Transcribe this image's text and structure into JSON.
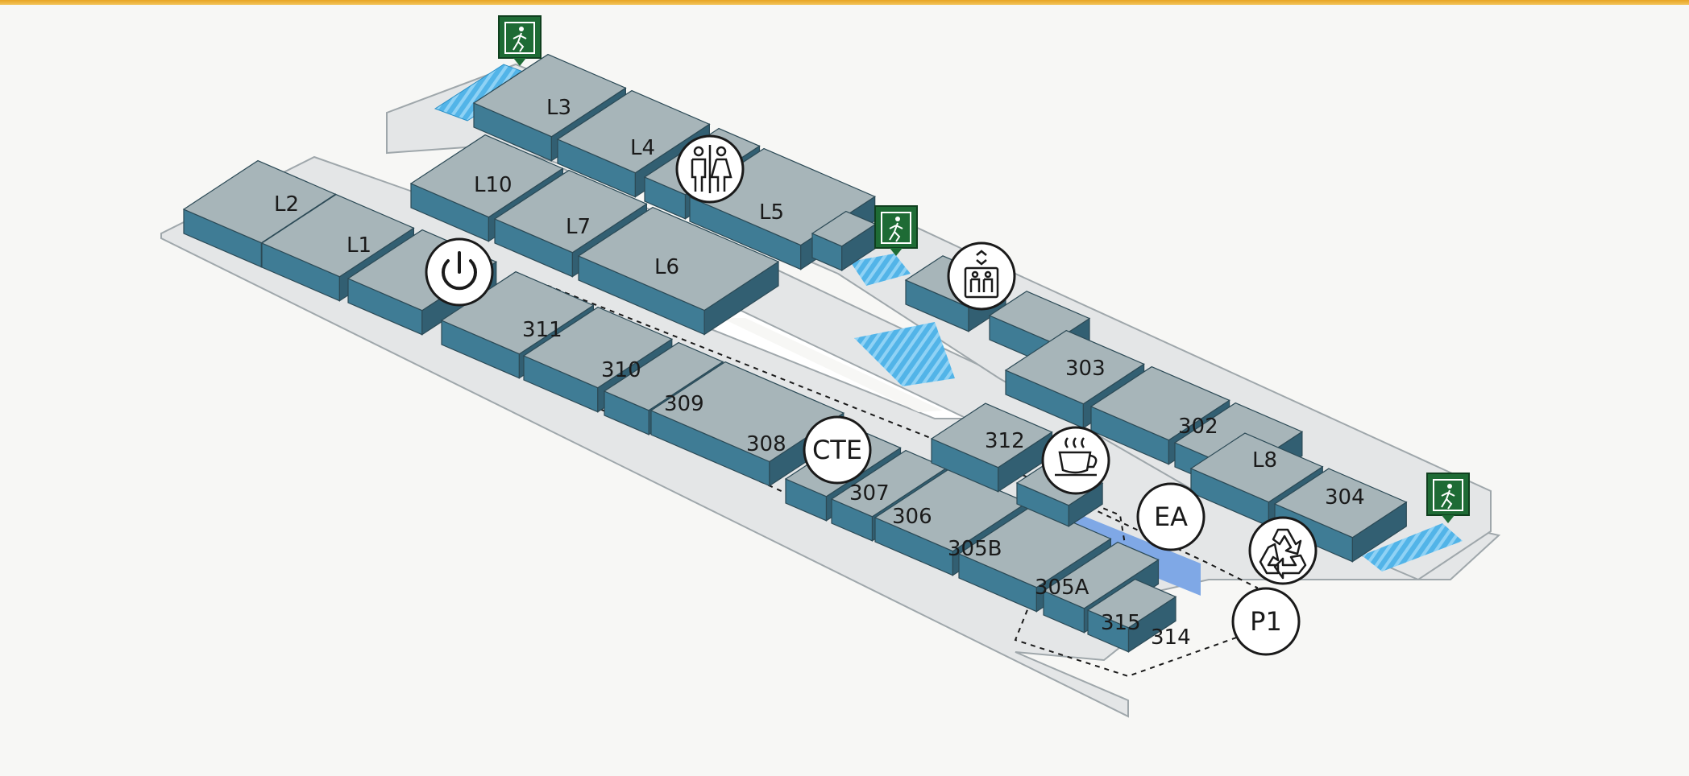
{
  "map": {
    "colors": {
      "floor": "#e4e6e7",
      "floor_edge": "#9fa7ab",
      "room_top": "#a7b5b9",
      "room_left": "#3f7c95",
      "room_right": "#325f72",
      "stairs": "#52b4e8",
      "highlight": "#7fa8e6",
      "exit_sign": "#1e6b35",
      "icon_stroke": "#1a1a1a"
    },
    "rooms": {
      "L1": "L1",
      "L2": "L2",
      "L3": "L3",
      "L4": "L4",
      "L5": "L5",
      "L6": "L6",
      "L7": "L7",
      "L8": "L8",
      "L10": "L10",
      "r311": "311",
      "r310": "310",
      "r309": "309",
      "r308": "308",
      "r307": "307",
      "r306": "306",
      "r305B": "305B",
      "r305A": "305A",
      "r315": "315",
      "r314": "314",
      "r312": "312",
      "r303": "303",
      "r302": "302",
      "r304": "304"
    },
    "pois": {
      "cte": "CTE",
      "ea": "EA",
      "p1": "P1",
      "restroom": "restroom-icon",
      "elevator": "elevator-icon",
      "power": "power-icon",
      "coffee": "coffee-icon",
      "recycle": "recycle-icon",
      "emergency_exit": "emergency-exit-icon"
    }
  }
}
